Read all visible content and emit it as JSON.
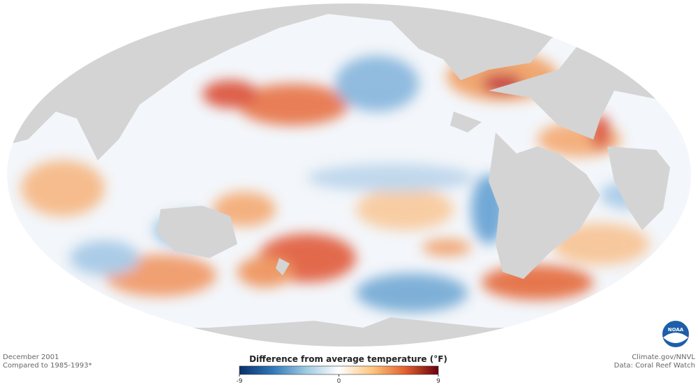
{
  "map": {
    "date": "December 2001",
    "baseline": "Compared to 1985-1993*",
    "credit": "Climate.gov/NNVL",
    "source": "Data: Coral Reef Watch",
    "logo": "NOAA",
    "legend": {
      "title": "Difference from average temperature (°F)",
      "range": [
        -9,
        9
      ],
      "ticks": [
        -9,
        0,
        9
      ],
      "colors": [
        "#08306b",
        "#2f78b8",
        "#9ecae1",
        "#ffffff",
        "#fdc67e",
        "#e3602e",
        "#67000d"
      ]
    }
  }
}
